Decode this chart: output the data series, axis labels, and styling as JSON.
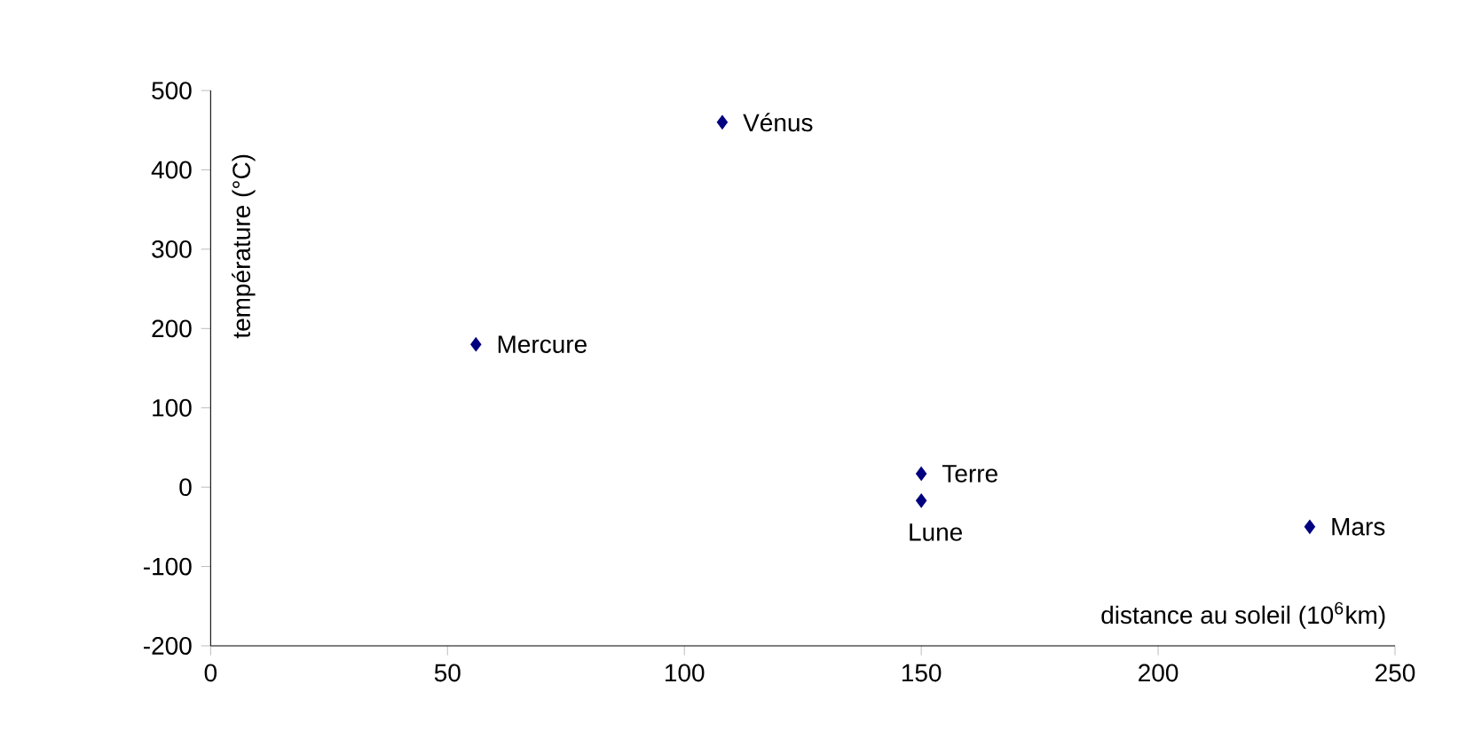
{
  "chart_data": {
    "type": "scatter",
    "xlabel": "distance au soleil (10$^{6}$km)",
    "ylabel": "température (°C)",
    "x": [
      56,
      108,
      150,
      150,
      232
    ],
    "values": [
      180,
      460,
      17,
      -17,
      -50
    ],
    "color": "#000080",
    "marker": "diamond",
    "xlim": [
      0,
      250
    ],
    "xticks": [
      0,
      50,
      100,
      150,
      200,
      250
    ],
    "ylim": [
      -200,
      500
    ],
    "yticks": [
      -200,
      -100,
      0,
      100,
      200,
      300,
      400,
      500
    ],
    "grid": false,
    "annotations": [
      {
        "text": "Mercure",
        "x": 56,
        "y": 180
      },
      {
        "text": "Vénus",
        "x": 108,
        "y": 460
      },
      {
        "text": "Terre",
        "x": 150,
        "y": 17
      },
      {
        "text": "Lune",
        "x": 150,
        "y": -17
      },
      {
        "text": "Mars",
        "x": 232,
        "y": -50
      }
    ]
  }
}
